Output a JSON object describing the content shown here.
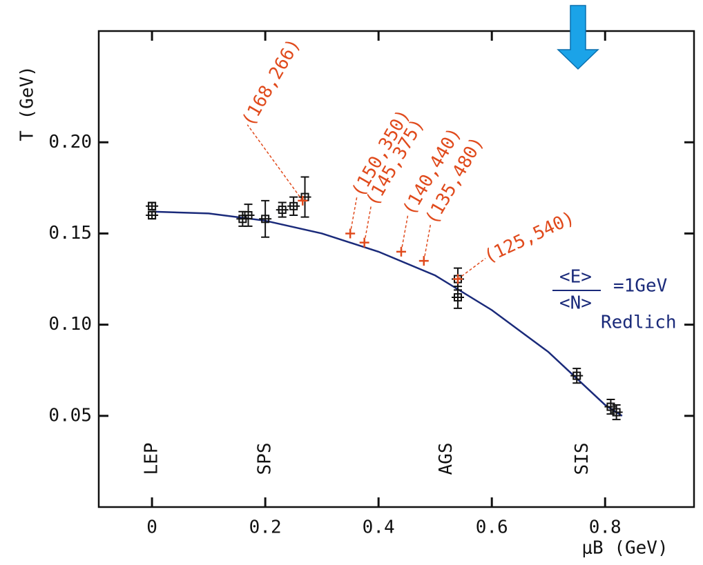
{
  "chart_data": {
    "type": "scatter",
    "ylabel": "T (GeV)",
    "xlabel": "μB (GeV)",
    "xlim": [
      -0.094,
      0.957
    ],
    "ylim": [
      0,
      0.261
    ],
    "xticks": [
      0,
      0.2,
      0.4,
      0.6,
      0.8
    ],
    "yticks": [
      0.05,
      {
        "value": 0.1,
        "label": "0.10"
      },
      0.15,
      {
        "value": 0.2,
        "label": "0.20"
      }
    ],
    "points": {
      "color": "#111111",
      "x": [
        0,
        0,
        0.16,
        0.17,
        0.2,
        0.23,
        0.25,
        0.27,
        0.54,
        0.54,
        0.75,
        0.81,
        0.82
      ],
      "y": [
        0.16,
        0.165,
        0.158,
        0.16,
        0.158,
        0.163,
        0.165,
        0.17,
        0.125,
        0.115,
        0.072,
        0.055,
        0.052
      ],
      "yerr": [
        0.002,
        0.002,
        0.004,
        0.006,
        0.01,
        0.004,
        0.005,
        0.011,
        0.006,
        0.006,
        0.004,
        0.004,
        0.004
      ]
    },
    "curve": {
      "color": "#1a2a7a",
      "x": [
        0,
        0.1,
        0.2,
        0.3,
        0.4,
        0.5,
        0.6,
        0.7,
        0.8,
        0.83
      ],
      "y": [
        0.162,
        0.161,
        0.157,
        0.15,
        0.14,
        0.127,
        0.108,
        0.085,
        0.056,
        0.05
      ]
    },
    "red_points": {
      "color": "#e04a1c",
      "x": [
        0.266,
        0.35,
        0.375,
        0.44,
        0.48,
        0.54
      ],
      "y": [
        0.168,
        0.15,
        0.145,
        0.14,
        0.135,
        0.125
      ],
      "labels": [
        "(168,266)",
        "(150,350)",
        "(145,375)",
        "(140,440)",
        "(135,480)",
        "(125,540)"
      ]
    },
    "regions": {
      "labels": [
        "LEP",
        "SPS",
        "AGS",
        "SIS"
      ],
      "x": [
        0,
        0.2,
        0.52,
        0.76
      ]
    },
    "curve_note": {
      "numerator": "<E>",
      "denominator": "<N>",
      "value": "=1GeV",
      "author": "Redlich"
    }
  }
}
